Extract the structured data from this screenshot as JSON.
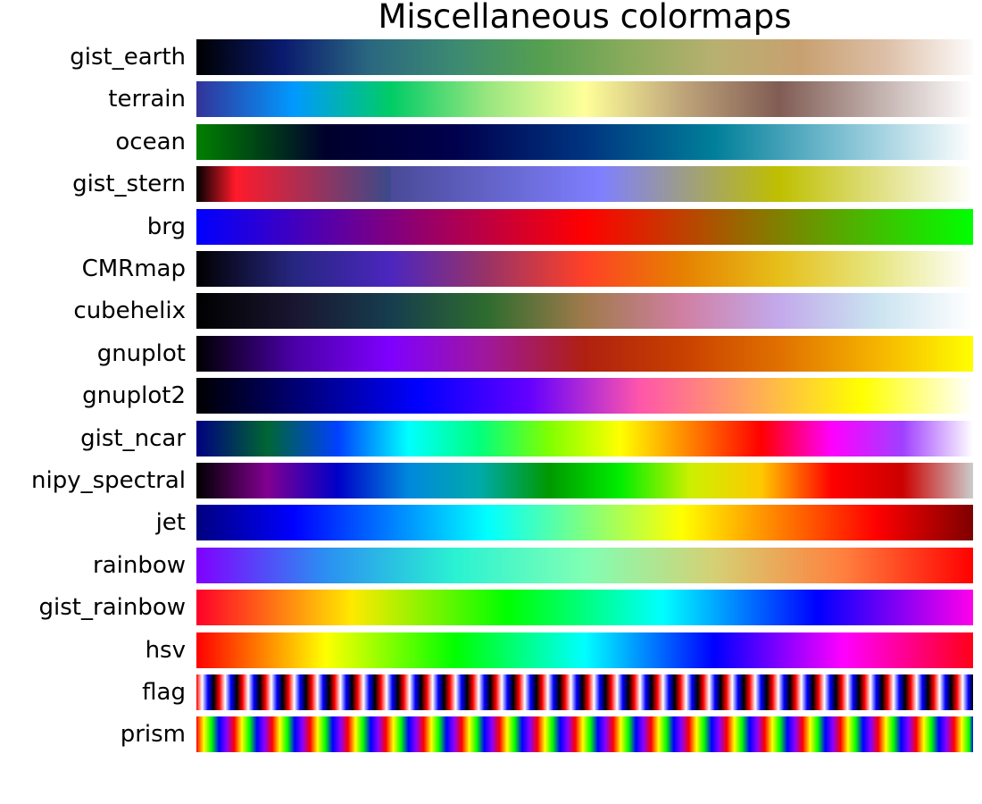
{
  "chart_data": {
    "type": "heatmap",
    "title": "Miscellaneous colormaps",
    "xlabel": "",
    "ylabel": "",
    "grid": false,
    "axes_visible": false,
    "colormaps": [
      {
        "name": "gist_earth",
        "stops": [
          "#000000",
          "#0a1a6e",
          "#2a6780",
          "#3c8a72",
          "#55a050",
          "#8aab5c",
          "#b8b070",
          "#c8a070",
          "#ddc0a8",
          "#fdfbfb"
        ]
      },
      {
        "name": "terrain",
        "stops": [
          "#333399",
          "#0099ff",
          "#00cc66",
          "#99e67f",
          "#ffff99",
          "#bfa57a",
          "#805c54",
          "#c0aeaa",
          "#ffffff"
        ]
      },
      {
        "name": "ocean",
        "stops": [
          "#008000",
          "#00002d",
          "#00004d",
          "#003480",
          "#007f9a",
          "#7fc0d3",
          "#ffffff"
        ]
      },
      {
        "name": "gist_stern",
        "pos": [
          0,
          0.05,
          0.25,
          0.25001,
          0.52,
          0.75,
          1
        ],
        "stops": [
          "#000000",
          "#ff1a2a",
          "#3b4a8a",
          "#4a4a98",
          "#7f7fff",
          "#bfbf00",
          "#ffffff"
        ]
      },
      {
        "name": "brg",
        "stops": [
          "#0000ff",
          "#800080",
          "#ff0000",
          "#808000",
          "#00ff00"
        ]
      },
      {
        "name": "CMRmap",
        "stops": [
          "#000000",
          "#262680",
          "#4c26bf",
          "#993366",
          "#ff4026",
          "#e68000",
          "#e6bf1a",
          "#e6e680",
          "#ffffff"
        ]
      },
      {
        "name": "cubehelix",
        "stops": [
          "#000000",
          "#1a1530",
          "#163d4e",
          "#2e6c2e",
          "#a07a4b",
          "#d07fa2",
          "#c3a9eb",
          "#cae3f0",
          "#ffffff"
        ]
      },
      {
        "name": "gnuplot",
        "stops": [
          "#000000",
          "#4a00a6",
          "#7f00ff",
          "#a0189a",
          "#b02010",
          "#c84000",
          "#e07000",
          "#f5b300",
          "#ffff00"
        ]
      },
      {
        "name": "gnuplot2",
        "stops": [
          "#000000",
          "#000080",
          "#0000ff",
          "#6400ff",
          "#ff56aa",
          "#ffa85a",
          "#ffff00",
          "#ffffff"
        ]
      },
      {
        "name": "gist_ncar",
        "stops": [
          "#000080",
          "#006633",
          "#0040ff",
          "#00ffff",
          "#00ff80",
          "#80ff00",
          "#ffff00",
          "#ff8000",
          "#ff0000",
          "#ff00ff",
          "#a040ff",
          "#ffffff"
        ]
      },
      {
        "name": "nipy_spectral",
        "stops": [
          "#000000",
          "#820090",
          "#0000c8",
          "#0088dd",
          "#00aaaa",
          "#009900",
          "#00ee00",
          "#ccf000",
          "#ffc800",
          "#ff0000",
          "#cc0000",
          "#cccccc"
        ]
      },
      {
        "name": "jet",
        "stops": [
          "#00007f",
          "#0000ff",
          "#007fff",
          "#00ffff",
          "#7fff7f",
          "#ffff00",
          "#ff7f00",
          "#ff0000",
          "#7f0000"
        ]
      },
      {
        "name": "rainbow",
        "stops": [
          "#8000ff",
          "#2b8ff2",
          "#2af2d2",
          "#80ffb4",
          "#d5d074",
          "#ff803e",
          "#ff0000"
        ]
      },
      {
        "name": "gist_rainbow",
        "stops": [
          "#ff0029",
          "#ffe900",
          "#00ff00",
          "#00ffff",
          "#0000ff",
          "#ff00ea"
        ]
      },
      {
        "name": "hsv",
        "stops": [
          "#ff0000",
          "#ffff00",
          "#00ff00",
          "#00ffff",
          "#0000ff",
          "#ff00ff",
          "#ff0018"
        ]
      },
      {
        "name": "flag",
        "cycles": 33.7,
        "cycle_stops": [
          "#ff0000",
          "#ffffff",
          "#0000ff",
          "#000000",
          "#ff0000"
        ]
      },
      {
        "name": "prism",
        "cycles": 20.5,
        "cycle_stops": [
          "#ff0000",
          "#ffff00",
          "#00ff00",
          "#0000ff",
          "#8b00ff",
          "#ff0000"
        ]
      }
    ]
  }
}
